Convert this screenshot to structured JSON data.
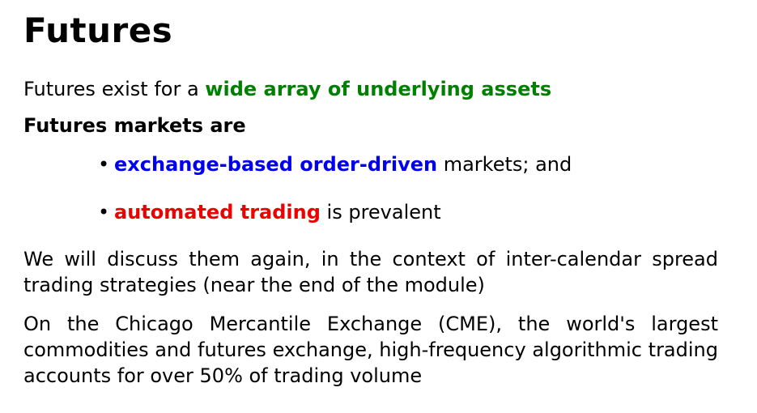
{
  "title": "Futures",
  "line1": {
    "prefix": "Futures exist for a ",
    "highlight": "wide array of underlying assets"
  },
  "line2": "Futures markets are",
  "bullets": [
    {
      "glyph": "•",
      "highlight": "exchange-based order-driven",
      "suffix": " markets; and"
    },
    {
      "glyph": "•",
      "highlight": "automated trading",
      "suffix": " is prevalent"
    }
  ],
  "paragraph1": "We will discuss them again, in the context of inter-calendar spread trading strategies (near the end of the module)",
  "paragraph2": "On the Chicago Mercantile Exchange (CME), the world's largest commodities and futures exchange, high-frequency algorithmic trading accounts for over 50% of trading volume",
  "colors": {
    "green": "#008000",
    "blue": "#0000ee",
    "red": "#ee0000"
  }
}
